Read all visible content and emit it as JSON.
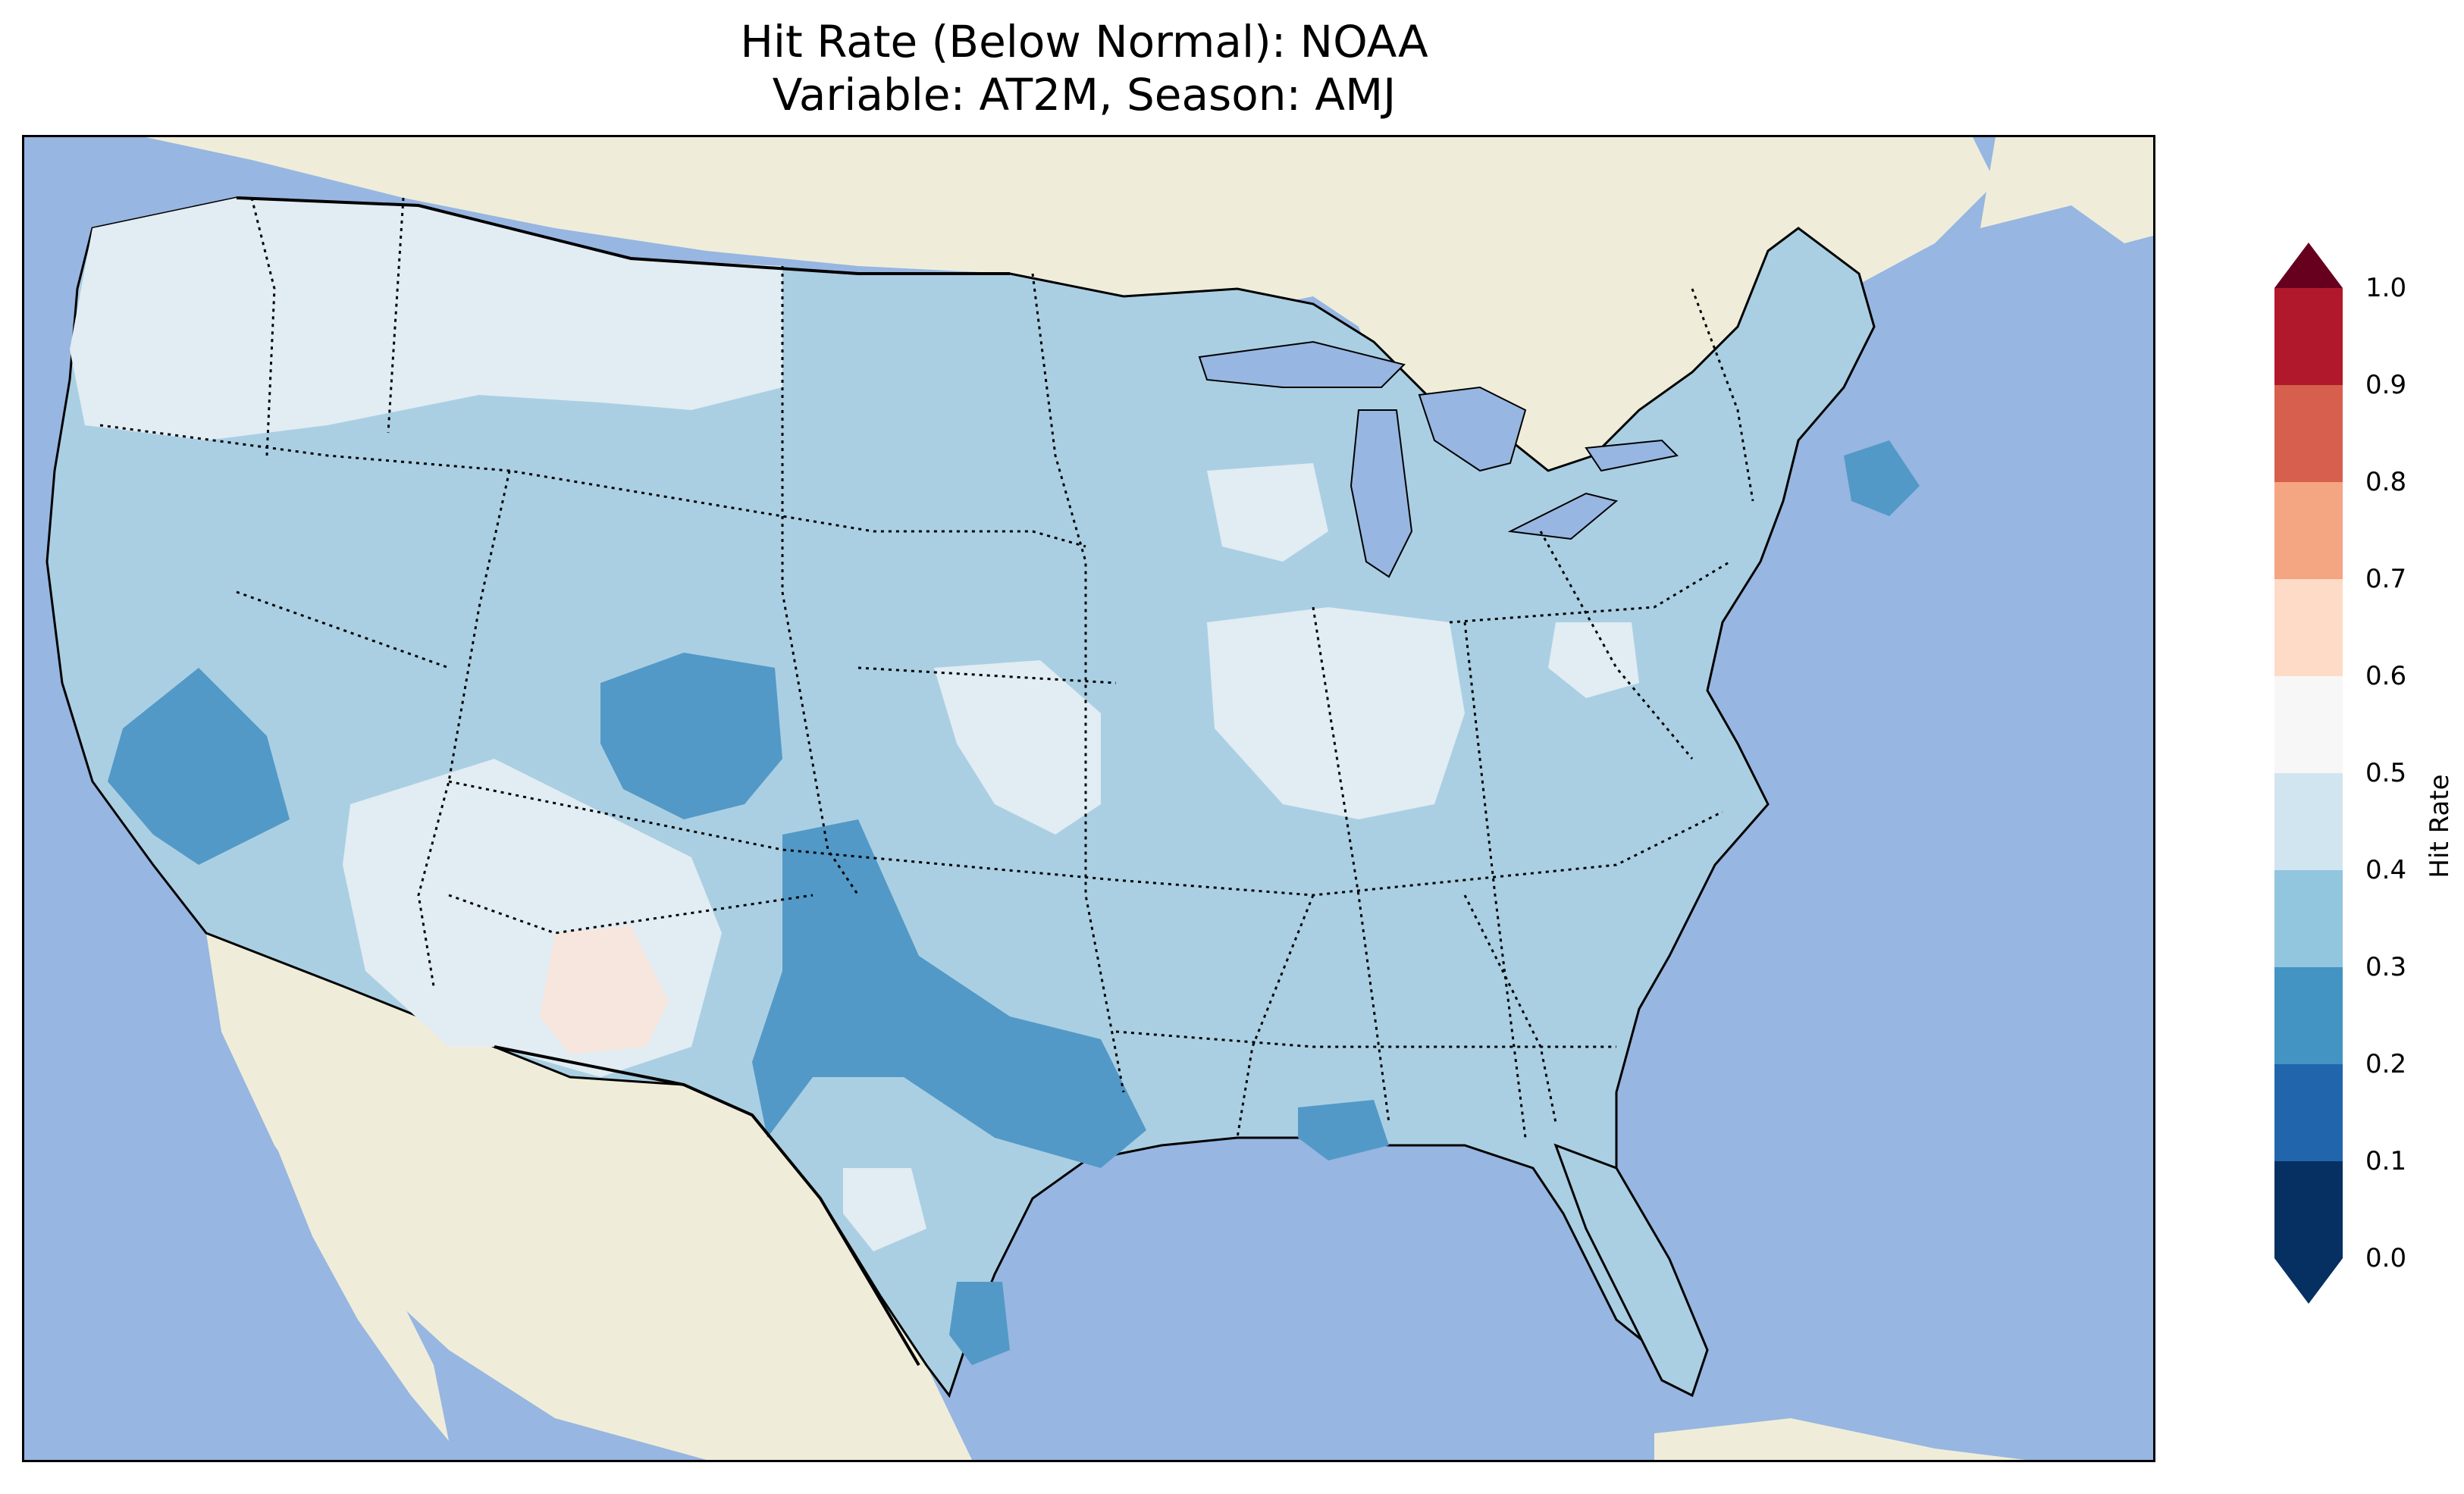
{
  "title": {
    "line1": "Hit Rate (Below Normal): NOAA",
    "line2": "Variable: AT2M, Season: AMJ"
  },
  "colors": {
    "ocean": "#97b6e1",
    "land": "#efedda",
    "region_0_5_0_6": "#f7e6dd",
    "region_0_4_0_5": "#e1ecf3",
    "region_0_3_0_4": "#aacfe3",
    "region_0_2_0_3": "#5399c7",
    "region_0_1_0_2": "#2a6ab0",
    "region_0_0_0_1": "#053061"
  },
  "colorbar": {
    "label": "Hit Rate",
    "ticks": [
      "0.0",
      "0.1",
      "0.2",
      "0.3",
      "0.4",
      "0.5",
      "0.6",
      "0.7",
      "0.8",
      "0.9",
      "1.0"
    ],
    "bins": [
      {
        "range": "0.0-0.1",
        "color": "#053061"
      },
      {
        "range": "0.1-0.2",
        "color": "#2166ac"
      },
      {
        "range": "0.2-0.3",
        "color": "#4393c3"
      },
      {
        "range": "0.3-0.4",
        "color": "#92c5de"
      },
      {
        "range": "0.4-0.5",
        "color": "#d1e5f0"
      },
      {
        "range": "0.5-0.6",
        "color": "#f7f7f7"
      },
      {
        "range": "0.6-0.7",
        "color": "#fddbc7"
      },
      {
        "range": "0.7-0.8",
        "color": "#f4a582"
      },
      {
        "range": "0.8-0.9",
        "color": "#d6604d"
      },
      {
        "range": "0.9-1.0",
        "color": "#b2182b"
      }
    ],
    "under_color": "#053061",
    "over_color": "#67001f"
  }
}
